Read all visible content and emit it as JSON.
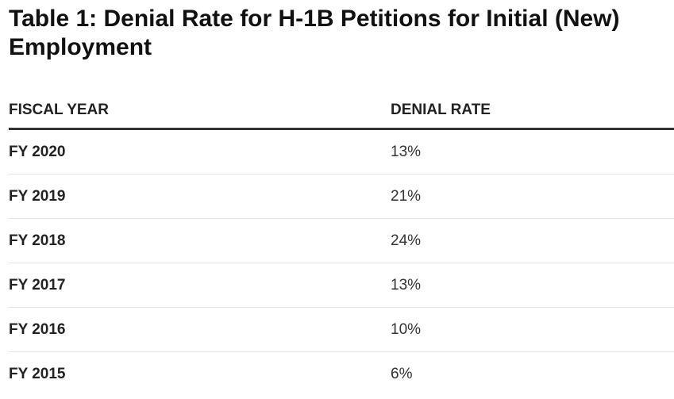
{
  "title": "Table 1: Denial Rate for H-1B Petitions for Initial (New) Employment",
  "chart_data": {
    "type": "table",
    "title": "Table 1: Denial Rate for H-1B Petitions for Initial (New) Employment",
    "columns": [
      "FISCAL YEAR",
      "DENIAL RATE"
    ],
    "rows": [
      [
        "FY 2020",
        "13%"
      ],
      [
        "FY 2019",
        "21%"
      ],
      [
        "FY 2018",
        "24%"
      ],
      [
        "FY 2017",
        "13%"
      ],
      [
        "FY 2016",
        "10%"
      ],
      [
        "FY 2015",
        "6%"
      ]
    ]
  }
}
